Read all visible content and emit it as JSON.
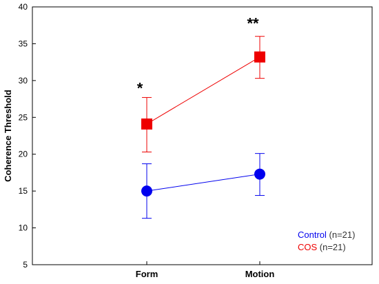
{
  "chart_data": {
    "type": "line",
    "ylabel": "Coherence Threshold",
    "ylim": [
      5,
      40
    ],
    "yticks": [
      5,
      10,
      15,
      20,
      25,
      30,
      35,
      40
    ],
    "categories": [
      "Form",
      "Motion"
    ],
    "grid": false,
    "legend_position": "bottom-right",
    "series": [
      {
        "name": "Control",
        "legend_suffix": "(n=21)",
        "color": "#0000ee",
        "marker": "circle",
        "values": [
          15.0,
          17.3
        ],
        "error_upper": [
          18.7,
          20.1
        ],
        "error_lower": [
          11.3,
          14.4
        ]
      },
      {
        "name": "COS",
        "legend_suffix": "(n=21)",
        "color": "#ee0000",
        "marker": "square",
        "values": [
          24.1,
          33.2
        ],
        "error_upper": [
          27.7,
          36.0
        ],
        "error_lower": [
          20.3,
          30.3
        ]
      }
    ],
    "annotations": [
      {
        "text": "*",
        "category": "Form",
        "y": 29.0
      },
      {
        "text": "**",
        "category": "Motion",
        "y": 37.8
      }
    ]
  }
}
